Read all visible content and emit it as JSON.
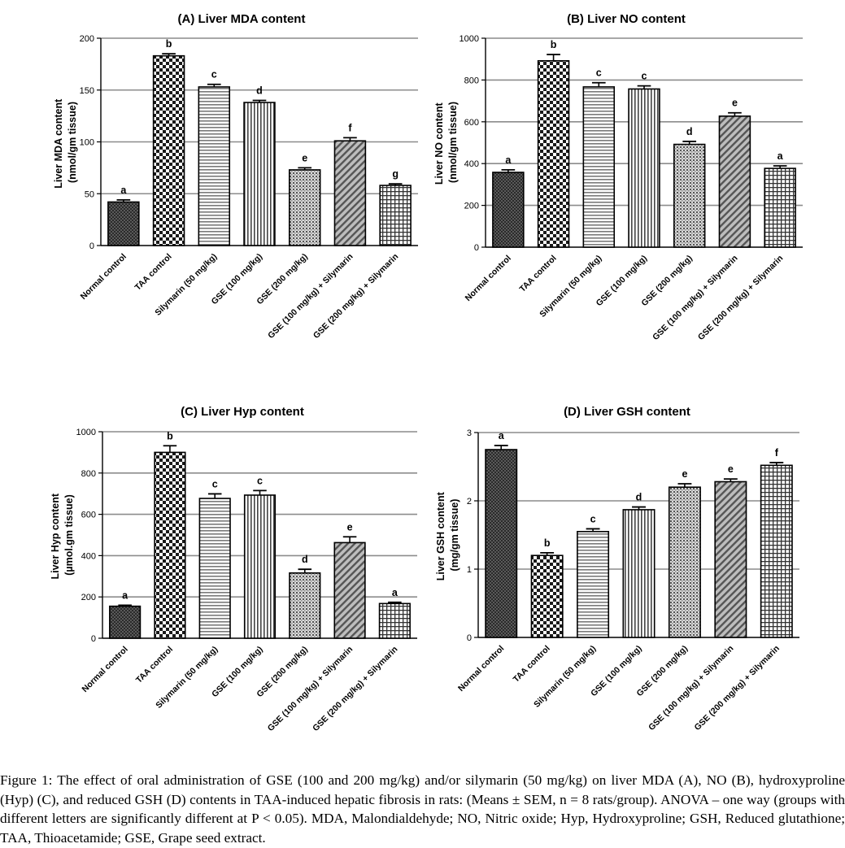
{
  "categories": [
    "Normal control",
    "TAA control",
    "Silymarin (50 mg/kg)",
    "GSE (100 mg/kg)",
    "GSE (200 mg/kg)",
    "GSE (100 mg/kg) + Silymarin",
    "GSE (200 mg/kg) + Silymarin"
  ],
  "chart_data": [
    {
      "type": "bar",
      "title": "(A) Liver MDA content",
      "ylabel": [
        "Liver MDA content",
        "(nmol/gm tissue)"
      ],
      "ylim": [
        0,
        200
      ],
      "yticks": [
        0,
        50,
        100,
        150,
        200
      ],
      "grid": true,
      "values": [
        42,
        183,
        153,
        138,
        73,
        101,
        58
      ],
      "errors": [
        2,
        2,
        2.5,
        2,
        2,
        3,
        1.5
      ],
      "letters": [
        "a",
        "b",
        "c",
        "d",
        "e",
        "f",
        "g"
      ]
    },
    {
      "type": "bar",
      "title": "(B) Liver NO content",
      "ylabel": [
        "Liver NO content",
        "(nmol/gm tissue)"
      ],
      "ylim": [
        0,
        1000
      ],
      "yticks": [
        0,
        200,
        400,
        600,
        800,
        1000
      ],
      "grid": true,
      "values": [
        358,
        892,
        767,
        757,
        492,
        627,
        377
      ],
      "errors": [
        12,
        30,
        20,
        15,
        14,
        16,
        12
      ],
      "letters": [
        "a",
        "b",
        "c",
        "c",
        "d",
        "e",
        "a"
      ]
    },
    {
      "type": "bar",
      "title": "(C) Liver Hyp content",
      "ylabel": [
        "Liver Hyp content",
        "(µmol.gm tissue)"
      ],
      "ylim": [
        0,
        1000
      ],
      "yticks": [
        0,
        200,
        400,
        600,
        800,
        1000
      ],
      "grid": true,
      "values": [
        155,
        900,
        677,
        693,
        316,
        463,
        168
      ],
      "errors": [
        5,
        32,
        22,
        22,
        18,
        28,
        6
      ],
      "letters": [
        "a",
        "b",
        "c",
        "c",
        "d",
        "e",
        "a"
      ]
    },
    {
      "type": "bar",
      "title": "(D) Liver GSH content",
      "ylabel": [
        "Liver GSH content",
        "(mg/gm tissue)"
      ],
      "ylim": [
        0,
        3
      ],
      "yticks": [
        0,
        1,
        2,
        3
      ],
      "grid": true,
      "values": [
        2.75,
        1.2,
        1.55,
        1.87,
        2.2,
        2.28,
        2.52
      ],
      "errors": [
        0.06,
        0.04,
        0.04,
        0.04,
        0.05,
        0.04,
        0.04
      ],
      "letters": [
        "a",
        "b",
        "c",
        "d",
        "e",
        "e",
        "f"
      ]
    }
  ],
  "caption": {
    "label": "Figure 1:",
    "text": "The effect of oral administration of GSE (100 and 200 mg/kg) and/or silymarin (50 mg/kg) on liver MDA (A), NO (B), hydroxyproline (Hyp) (C), and reduced GSH (D) contents in TAA-induced hepatic fibrosis in rats: (Means ± SEM, n = 8 rats/group). ANOVA – one way (groups with different letters are significantly different at P < 0.05). MDA, Malondialdehyde; NO, Nitric oxide; Hyp, Hydroxyproline; GSH, Reduced glutathione; TAA, Thioacetamide; GSE, Grape seed extract."
  }
}
